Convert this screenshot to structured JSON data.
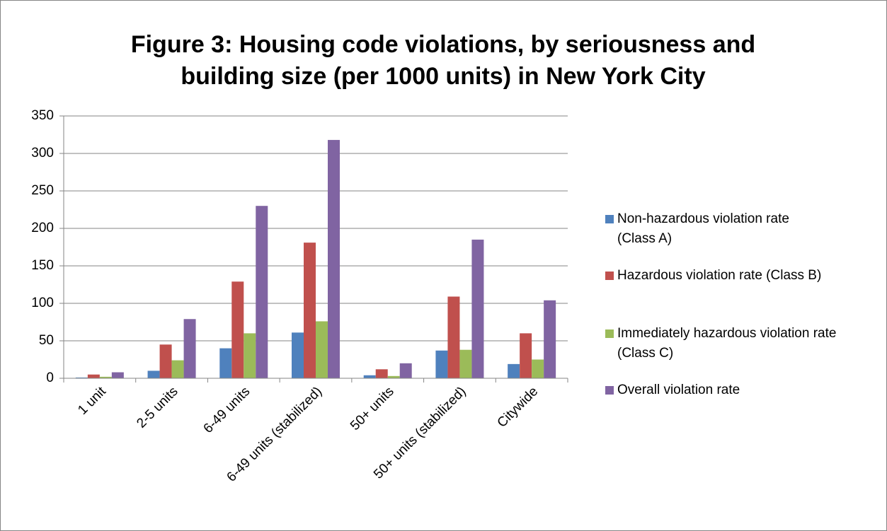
{
  "chart_data": {
    "type": "bar",
    "title": "Figure 3: Housing code violations, by seriousness and building size (per 1000 units) in New York City",
    "categories": [
      "1 unit",
      "2-5 units",
      "6-49 units",
      "6-49 units (stabilized)",
      "50+ units",
      "50+ units (stabilized)",
      "Citywide"
    ],
    "series": [
      {
        "name": "Non-hazardous violation rate (Class A)",
        "color": "#4f81bd",
        "values": [
          1,
          10,
          40,
          61,
          4,
          37,
          19
        ]
      },
      {
        "name": "Hazardous violation rate (Class B)",
        "color": "#c0504d",
        "values": [
          5,
          45,
          129,
          181,
          12,
          109,
          60
        ]
      },
      {
        "name": "Immediately hazardous violation rate (Class C)",
        "color": "#9bbb59",
        "values": [
          2,
          24,
          60,
          76,
          3,
          38,
          25
        ]
      },
      {
        "name": "Overall violation rate",
        "color": "#8064a2",
        "values": [
          8,
          79,
          230,
          318,
          20,
          185,
          104
        ]
      }
    ],
    "ylim": [
      0,
      350
    ],
    "yticks": [
      0,
      50,
      100,
      150,
      200,
      250,
      300,
      350
    ],
    "grid": true,
    "legend": "right"
  }
}
